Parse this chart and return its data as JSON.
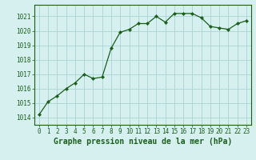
{
  "x": [
    0,
    1,
    2,
    3,
    4,
    5,
    6,
    7,
    8,
    9,
    10,
    11,
    12,
    13,
    14,
    15,
    16,
    17,
    18,
    19,
    20,
    21,
    22,
    23
  ],
  "y": [
    1014.2,
    1015.1,
    1015.5,
    1016.0,
    1016.4,
    1017.0,
    1016.7,
    1016.8,
    1018.8,
    1019.9,
    1020.1,
    1020.5,
    1020.5,
    1021.0,
    1020.6,
    1021.2,
    1021.2,
    1021.2,
    1020.9,
    1020.3,
    1020.2,
    1020.1,
    1020.5,
    1020.7
  ],
  "line_color": "#1a5e1a",
  "marker_color": "#1a5e1a",
  "bg_color": "#d6f0f0",
  "grid_color": "#aad4d4",
  "xlabel": "Graphe pression niveau de la mer (hPa)",
  "ylim": [
    1013.5,
    1021.8
  ],
  "yticks": [
    1014,
    1015,
    1016,
    1017,
    1018,
    1019,
    1020,
    1021
  ],
  "xlim": [
    -0.5,
    23.5
  ],
  "xticks": [
    0,
    1,
    2,
    3,
    4,
    5,
    6,
    7,
    8,
    9,
    10,
    11,
    12,
    13,
    14,
    15,
    16,
    17,
    18,
    19,
    20,
    21,
    22,
    23
  ],
  "label_color": "#1a5e1a",
  "tick_fontsize": 5.5,
  "xlabel_fontsize": 7.0
}
